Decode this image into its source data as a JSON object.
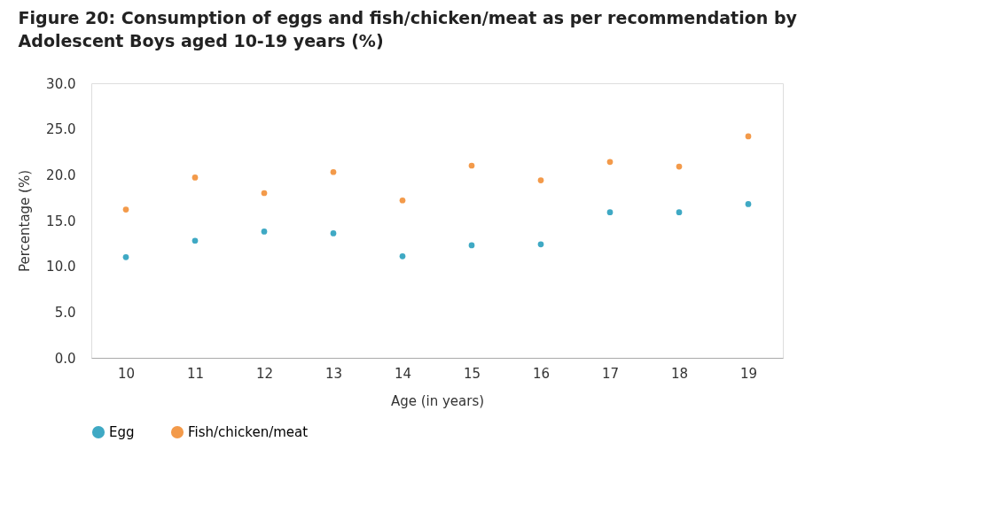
{
  "chart_data": {
    "type": "scatter",
    "title": "Figure 20: Consumption of eggs and fish/chicken/meat as per recommendation by Adolescent Boys aged 10-19 years (%)",
    "xlabel": "Age (in years)",
    "ylabel": "Percentage (%)",
    "categories": [
      "10",
      "11",
      "12",
      "13",
      "14",
      "15",
      "16",
      "17",
      "18",
      "19"
    ],
    "series": [
      {
        "name": "Egg",
        "color": "#3fa9c4",
        "values": [
          11.0,
          12.8,
          13.8,
          13.6,
          11.1,
          12.3,
          12.4,
          15.9,
          15.9,
          16.8
        ]
      },
      {
        "name": "Fish/chicken/meat",
        "color": "#f39a4a",
        "values": [
          16.2,
          19.7,
          18.0,
          20.3,
          17.2,
          21.0,
          19.4,
          21.4,
          20.9,
          24.2
        ]
      }
    ],
    "ylim": [
      0,
      30
    ],
    "yticks": [
      {
        "value": 0,
        "label": "0.0"
      },
      {
        "value": 5,
        "label": "5.0"
      },
      {
        "value": 10,
        "label": "10.0"
      },
      {
        "value": 15,
        "label": "15.0"
      },
      {
        "value": 20,
        "label": "20.0"
      },
      {
        "value": 25,
        "label": "25.0"
      },
      {
        "value": 30,
        "label": "30.0"
      }
    ],
    "grid": false,
    "legend": "bottom",
    "marker": "circle"
  }
}
